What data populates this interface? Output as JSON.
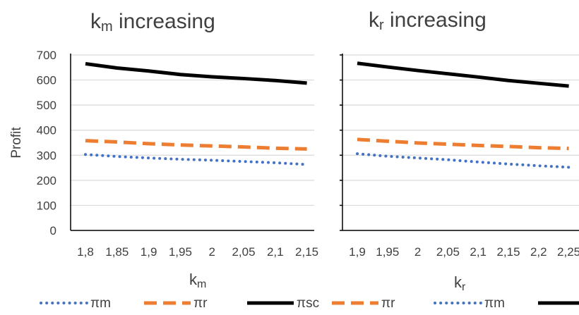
{
  "chart_data": [
    {
      "type": "line",
      "title": {
        "main": "k",
        "sub": "m",
        "rest": " increasing"
      },
      "ylabel": "Profit",
      "xlabel": {
        "main": "k",
        "sub": "m"
      },
      "ylim": [
        0,
        700
      ],
      "yticks": [
        0,
        100,
        200,
        300,
        400,
        500,
        600,
        700
      ],
      "categories": [
        "1,8",
        "1,85",
        "1,9",
        "1,95",
        "2",
        "2,05",
        "2,1",
        "2,15"
      ],
      "series": [
        {
          "key": "pm",
          "name": "πm",
          "color": "#4472c4",
          "style": "dotted",
          "values": [
            303,
            295,
            289,
            284,
            280,
            275,
            270,
            263
          ]
        },
        {
          "key": "pr",
          "name": "πr",
          "color": "#ed7d31",
          "style": "dashed",
          "values": [
            358,
            353,
            346,
            341,
            337,
            333,
            328,
            325
          ]
        },
        {
          "key": "psc",
          "name": "πsc",
          "color": "#000000",
          "style": "solid",
          "values": [
            665,
            648,
            636,
            622,
            613,
            606,
            598,
            588
          ]
        }
      ],
      "legend_order": [
        "pm",
        "pr",
        "psc"
      ],
      "grid": true,
      "legend_position": "bottom"
    },
    {
      "type": "line",
      "title": {
        "main": "k",
        "sub": "r",
        "rest": " increasing"
      },
      "ylabel": "",
      "xlabel": {
        "main": "k",
        "sub": "r"
      },
      "ylim": [
        0,
        700
      ],
      "categories": [
        "1,9",
        "1,95",
        "2",
        "2,05",
        "2,1",
        "2,15",
        "2,2",
        "2,25"
      ],
      "series": [
        {
          "key": "pr",
          "name": "πr",
          "color": "#ed7d31",
          "style": "dashed",
          "values": [
            363,
            356,
            349,
            344,
            339,
            335,
            330,
            327
          ]
        },
        {
          "key": "pm",
          "name": "πm",
          "color": "#4472c4",
          "style": "dotted",
          "values": [
            306,
            296,
            289,
            282,
            273,
            265,
            258,
            252
          ]
        },
        {
          "key": "psc",
          "name": "πsc",
          "color": "#000000",
          "style": "solid",
          "values": [
            667,
            652,
            638,
            625,
            612,
            598,
            587,
            576
          ]
        }
      ],
      "legend_order": [
        "pr",
        "pm",
        "psc"
      ],
      "grid": true,
      "legend_position": "bottom"
    }
  ]
}
